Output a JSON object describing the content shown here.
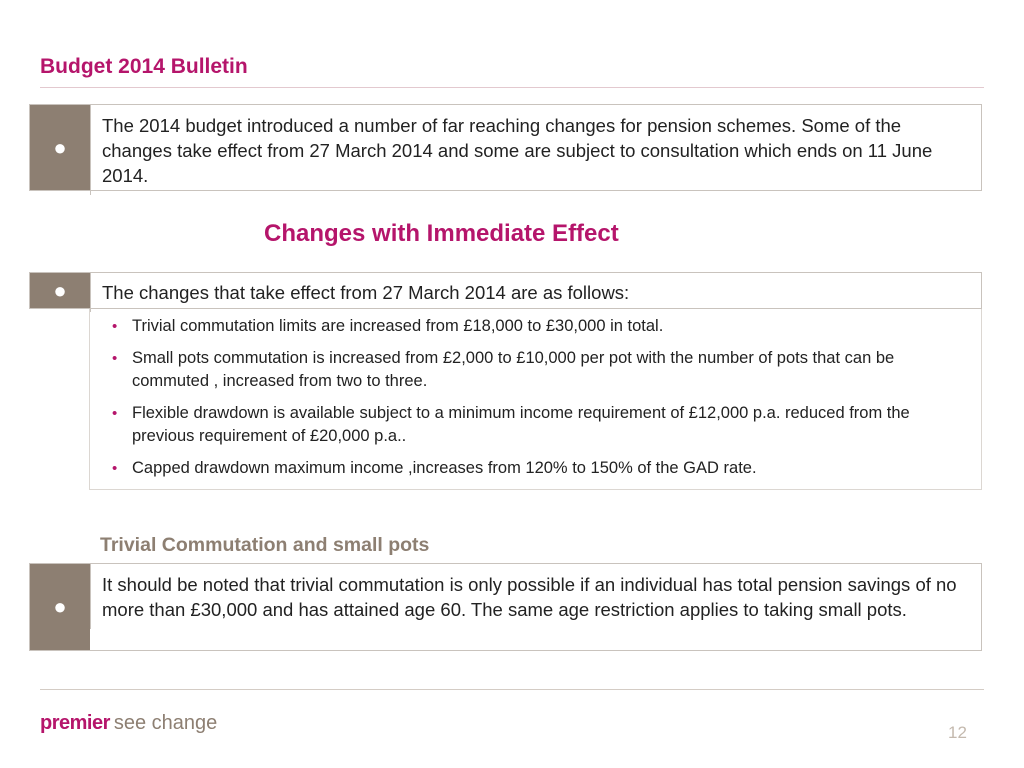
{
  "title": "Budget 2014 Bulletin",
  "intro": {
    "marker": "●",
    "text": "The 2014 budget introduced a number of far reaching changes for pension schemes. Some of the changes take effect from 27 March 2014 and some are subject to consultation which ends on 11 June 2014."
  },
  "immediate": {
    "heading": "Changes with Immediate Effect",
    "marker": "●",
    "lead": "The changes that take effect from 27 March 2014 are as follows:",
    "bullet_char": "•",
    "items": [
      "Trivial commutation limits are increased from £18,000   to £30,000  in total.",
      "Small pots commutation is increased from £2,000 to £10,000  per pot with the number of pots that can be commuted , increased from two to three.",
      "Flexible drawdown is available subject to a minimum income requirement of £12,000  p.a. reduced from the previous requirement of £20,000 p.a..",
      "Capped drawdown maximum income ,increases from 120% to 150% of the GAD rate."
    ]
  },
  "trivial": {
    "heading": "Trivial Commutation and small pots",
    "marker": "●",
    "text": "It should be noted that trivial commutation is only possible if an individual has total pension savings of no more than £30,000 and has attained age 60.  The same age restriction applies to taking small pots."
  },
  "footer": {
    "brand": "premier",
    "tagline": "see change",
    "page_number": "12"
  },
  "colors": {
    "accent": "#b5156b",
    "marker_bg": "#8d7f72",
    "border": "#c9c3bd"
  }
}
